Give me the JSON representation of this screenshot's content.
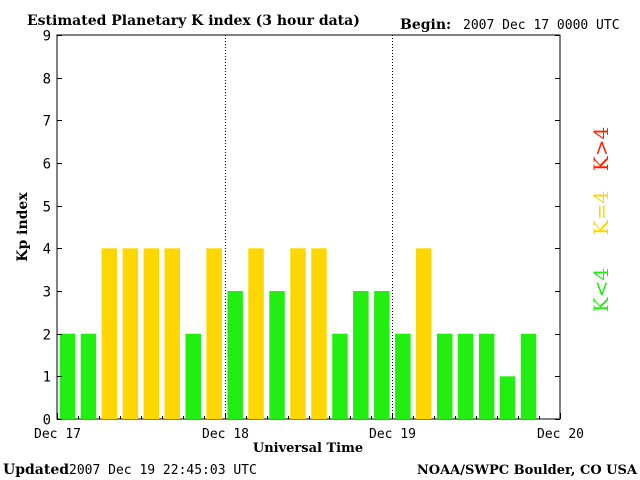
{
  "header": {
    "title": "Estimated Planetary K index (3 hour data)",
    "begin_label": "Begin:",
    "begin_value": "2007 Dec 17 0000 UTC"
  },
  "footer": {
    "updated_label": "Updated",
    "updated_value": "2007 Dec 19 22:45:03 UTC",
    "source": "NOAA/SWPC Boulder, CO USA"
  },
  "legend": {
    "low": "K<4",
    "equal": "K=4",
    "high": "K>4"
  },
  "colors": {
    "low": "#22ee11",
    "equal": "#ffd700",
    "high": "#ff2200",
    "axis": "#000000",
    "divider": "#000000"
  },
  "chart_data": {
    "type": "bar",
    "title": "Estimated Planetary K index (3 hour data)",
    "xlabel": "Universal Time",
    "ylabel": "Kp index",
    "ylim": [
      0,
      9
    ],
    "yticks": [
      0,
      1,
      2,
      3,
      4,
      5,
      6,
      7,
      8,
      9
    ],
    "xlim_hours": [
      0,
      72
    ],
    "bin_hours": 3,
    "xtick_labels": [
      "Dec 17",
      "Dec 18",
      "Dec 19",
      "Dec 20"
    ],
    "day_dividers_hours": [
      24,
      48
    ],
    "values": [
      2,
      2,
      4,
      4,
      4,
      4,
      2,
      4,
      3,
      4,
      3,
      4,
      4,
      2,
      3,
      3,
      2,
      4,
      2,
      2,
      2,
      1,
      2
    ],
    "color_rule": "green if K<4, yellow if K=4, red if K>4",
    "grid": false
  }
}
